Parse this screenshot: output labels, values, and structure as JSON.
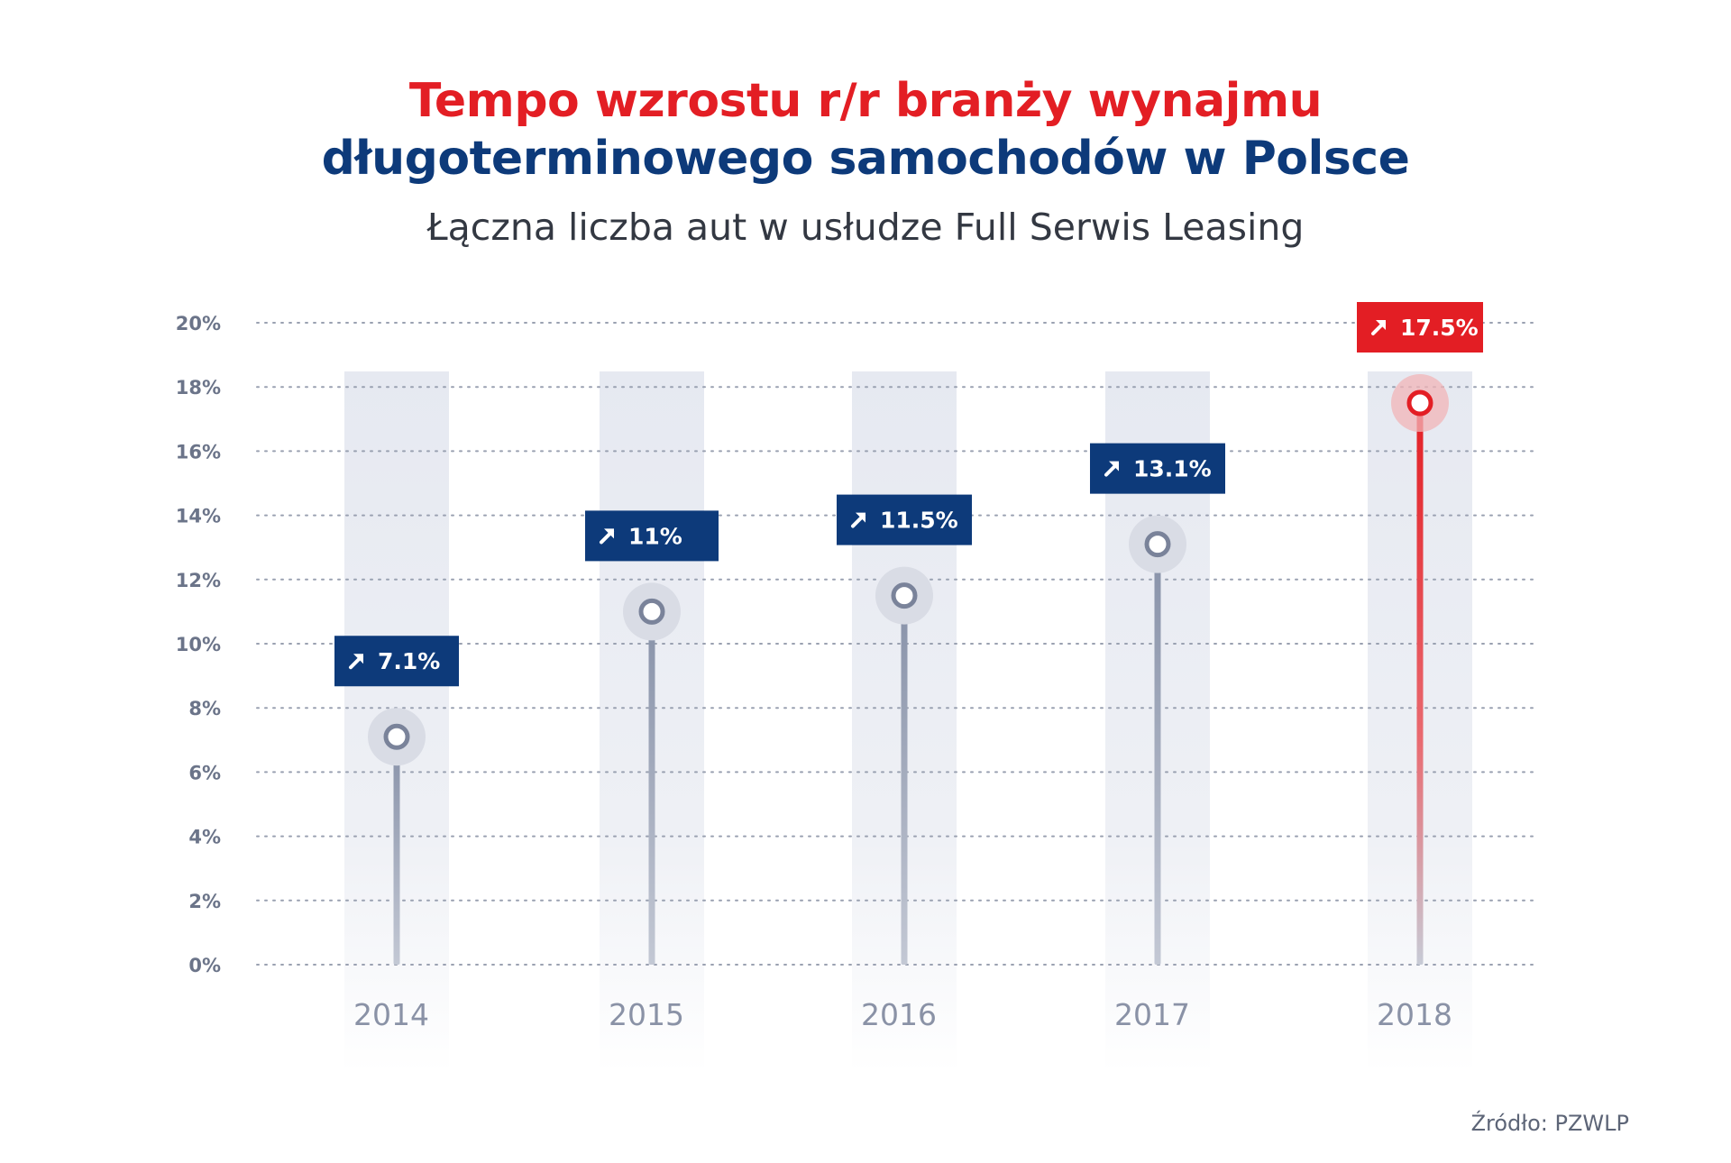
{
  "title": {
    "line1": "Tempo wzrostu r/r branży wynajmu",
    "line2": "długoterminowego samochodów w Polsce",
    "subtitle": "Łączna liczba aut w usłudze Full Serwis Leasing"
  },
  "source": "Źródło: PZWLP",
  "colors": {
    "title_red": "#e31e24",
    "navy": "#0d3a7a",
    "red": "#e31e24",
    "axis_text": "#6b7489",
    "year_text": "#8a92a6",
    "column_bg": "#e8ebf2",
    "stem": "#8e97ac"
  },
  "icons": {
    "label_arrow": "arrow-up-right-icon"
  },
  "chart_data": {
    "type": "lollipop",
    "categories": [
      "2014",
      "2015",
      "2016",
      "2017",
      "2018"
    ],
    "values": [
      7.1,
      11,
      11.5,
      13.1,
      17.5
    ],
    "value_labels": [
      "7.1%",
      "11%",
      "11.5%",
      "13.1%",
      "17.5%"
    ],
    "highlight_index": 4,
    "ylim": [
      0,
      20
    ],
    "yticks": [
      0,
      2,
      4,
      6,
      8,
      10,
      12,
      14,
      16,
      18,
      20
    ],
    "ytick_labels": [
      "0%",
      "2%",
      "4%",
      "6%",
      "8%",
      "10%",
      "12%",
      "14%",
      "16%",
      "18%",
      "20%"
    ],
    "grid": "dotted horizontal"
  }
}
